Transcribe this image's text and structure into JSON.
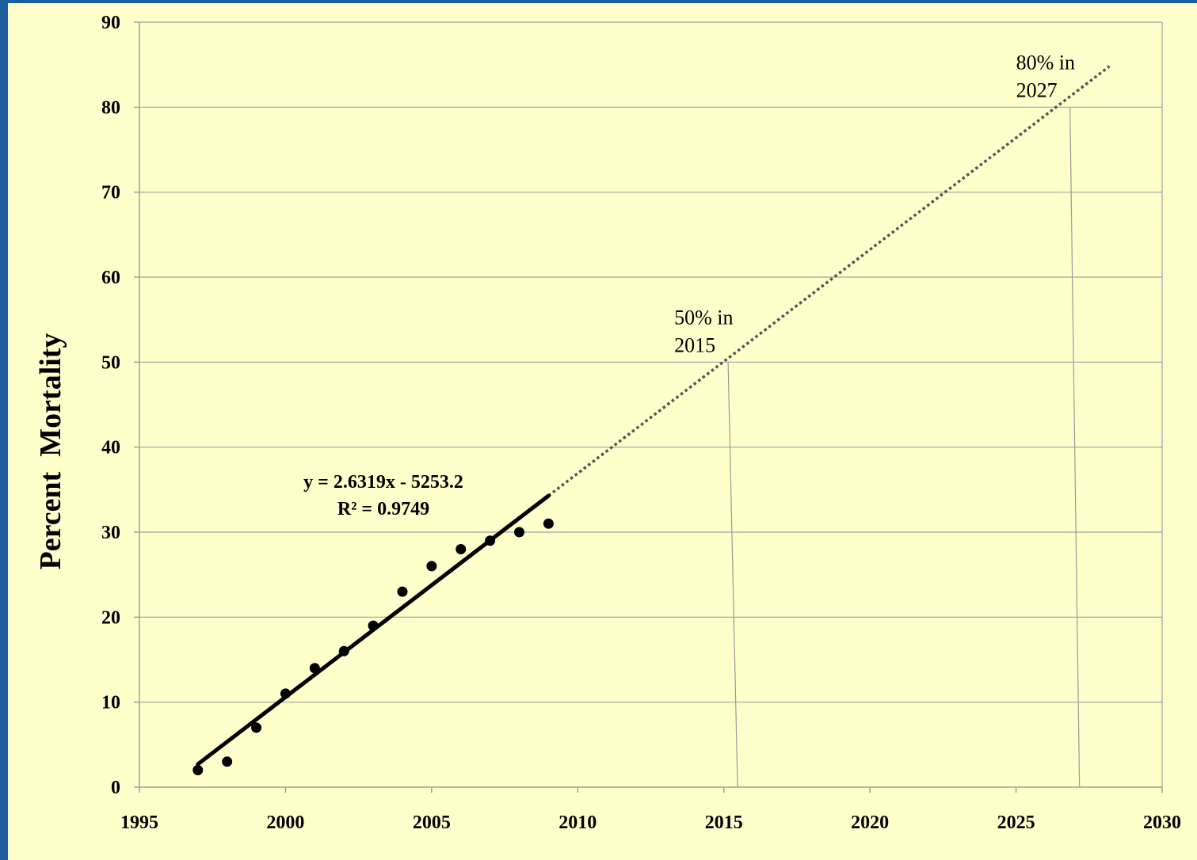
{
  "chart_data": {
    "type": "scatter",
    "ylabel": "Percent  Mortality",
    "xlabel": "",
    "xlim": [
      1995,
      2030
    ],
    "ylim": [
      0,
      90
    ],
    "xticks": [
      1995,
      2000,
      2005,
      2010,
      2015,
      2020,
      2025,
      2030
    ],
    "yticks": [
      0,
      10,
      20,
      30,
      40,
      50,
      60,
      70,
      80,
      90
    ],
    "grid": "horizontal",
    "series": [
      {
        "x": [
          1997,
          1998,
          1999,
          2000,
          2001,
          2002,
          2003,
          2004,
          2005,
          2006,
          2007,
          2008,
          2009
        ],
        "y": [
          2,
          3,
          7,
          11,
          14,
          16,
          19,
          23,
          26,
          28,
          29,
          30,
          31
        ]
      }
    ],
    "trendline": {
      "slope": 2.6319,
      "intercept": -5253.2,
      "fit_range": [
        1997,
        2009
      ],
      "extrapolation_range": [
        2009,
        2028.2
      ],
      "equation_label": "y = 2.6319x - 5253.2",
      "r2_label": "R² = 0.9749"
    },
    "annotations": [
      {
        "line1": "50% in",
        "line2": "2015",
        "x": 2015.2,
        "y": 50
      },
      {
        "line1": "80% in",
        "line2": "2027",
        "x": 2026.9,
        "y": 80
      }
    ],
    "colors": {
      "background": "#ffffcc",
      "border": "#1a5f9c",
      "grid": "#a0a0a0",
      "marker": "#000000"
    }
  }
}
